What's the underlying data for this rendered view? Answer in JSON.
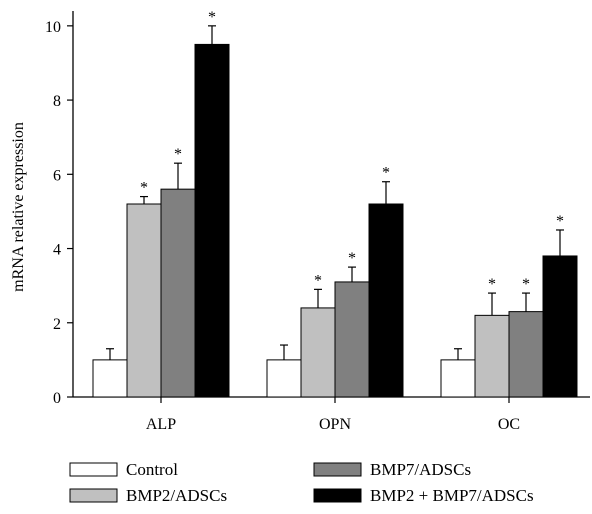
{
  "chart_data": {
    "type": "bar",
    "title": "",
    "xlabel": "",
    "ylabel": "mRNA relative expression",
    "ylim": [
      0,
      10.4
    ],
    "yticks": [
      0,
      2,
      4,
      6,
      8,
      10
    ],
    "categories": [
      "ALP",
      "OPN",
      "OC"
    ],
    "series": [
      {
        "name": "Control",
        "color": "#ffffff",
        "values": [
          1.0,
          1.0,
          1.0
        ],
        "errors": [
          0.3,
          0.4,
          0.3
        ],
        "significant": [
          false,
          false,
          false
        ]
      },
      {
        "name": "BMP2/ADSCs",
        "color": "#c0c0c0",
        "values": [
          5.2,
          2.4,
          2.2
        ],
        "errors": [
          0.2,
          0.5,
          0.6
        ],
        "significant": [
          true,
          true,
          true
        ]
      },
      {
        "name": "BMP7/ADSCs",
        "color": "#808080",
        "values": [
          5.6,
          3.1,
          2.3
        ],
        "errors": [
          0.7,
          0.4,
          0.5
        ],
        "significant": [
          true,
          true,
          true
        ]
      },
      {
        "name": "BMP2 + BMP7/ADSCs",
        "color": "#000000",
        "values": [
          9.5,
          5.2,
          3.8
        ],
        "errors": [
          0.5,
          0.6,
          0.7
        ],
        "significant": [
          true,
          true,
          true
        ]
      }
    ],
    "significance_marker": "*",
    "legend_position": "bottom"
  }
}
